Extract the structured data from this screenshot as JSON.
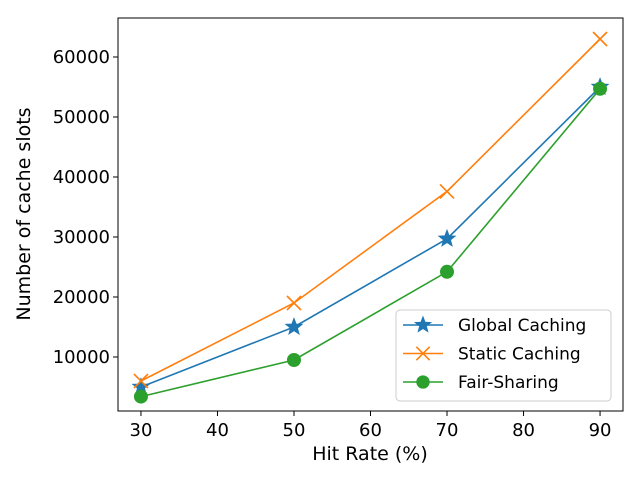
{
  "chart_data": {
    "type": "line",
    "title": "",
    "xlabel": "Hit Rate (%)",
    "ylabel": "Number of cache slots",
    "x": [
      30,
      50,
      70,
      90
    ],
    "xlim": [
      27,
      93
    ],
    "ylim": [
      1000,
      66500
    ],
    "xticks": [
      30,
      40,
      50,
      60,
      70,
      80,
      90
    ],
    "yticks": [
      10000,
      20000,
      30000,
      40000,
      50000,
      60000
    ],
    "grid": false,
    "legend_position": "lower-right",
    "series": [
      {
        "name": "Global Caching",
        "values": [
          5000,
          15000,
          29700,
          55000
        ],
        "color": "#1f77b4",
        "marker": "star"
      },
      {
        "name": "Static Caching",
        "values": [
          6000,
          19000,
          37600,
          63000
        ],
        "color": "#ff7f0e",
        "marker": "x"
      },
      {
        "name": "Fair-Sharing",
        "values": [
          3400,
          9500,
          24200,
          54700
        ],
        "color": "#2ca02c",
        "marker": "circle"
      }
    ]
  }
}
